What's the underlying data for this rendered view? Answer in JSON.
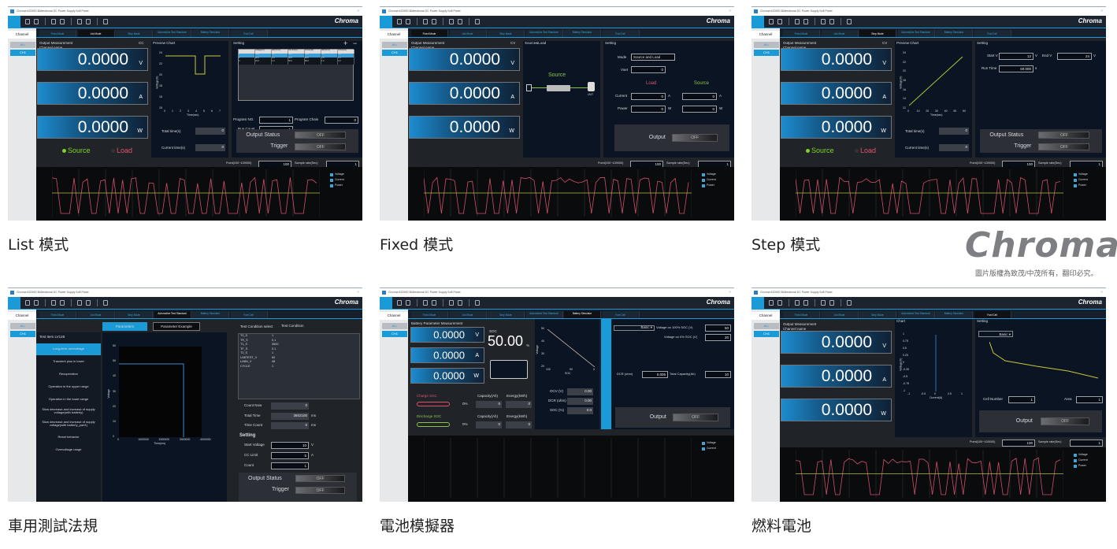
{
  "window": {
    "title": "Chroma 62000D Bidirectional DC Power Supply Soft Panel",
    "logo": "Chroma"
  },
  "mode_tabs": [
    "Fixed Mode",
    "List Mode",
    "Step Mode",
    "Automotive Test Standard",
    "Battery Simulator",
    "Fuel Cell"
  ],
  "channel": {
    "header": "Channel",
    "all": "ALL",
    "ch1": "CH1"
  },
  "colors": {
    "accent": "#1a9ad6",
    "source": "#7ed321",
    "load": "#e0506a",
    "voltage_line": "#a8c43c",
    "current_line": "#d0506a"
  },
  "common": {
    "output_measurement": "Output Measurement",
    "channel_name": "Channel name",
    "reading": "0.0000",
    "units": [
      "V",
      "A",
      "W"
    ],
    "source": "Source",
    "load": "Load",
    "off": "OFF",
    "output_status": "Output Status",
    "trigger": "Trigger",
    "output": "Output",
    "point_label": "Point(100~100000)",
    "point_value": "100",
    "sample_label": "Sample rate(Sec)",
    "sample_value": "1",
    "legend": [
      "Voltage",
      "Current",
      "Power"
    ],
    "setting": "Setting",
    "total_time": "Total time(s)",
    "current_time": "Current time(s)",
    "zero": "0"
  },
  "panels": [
    {
      "caption": "List 模式",
      "active_tab": 1,
      "mode": "CC",
      "chart_title": "Preview Chart",
      "yaxis": [
        "24",
        "22",
        "20",
        "18",
        "16",
        "15"
      ],
      "xaxis": [
        "0",
        "1",
        "2",
        "3",
        "4",
        "5",
        "6",
        "7"
      ],
      "xlabel": "Time(sec)",
      "ylabel": "Voltage(V)",
      "program_no_label": "Program NO.",
      "program_no": "1",
      "program_chain_label": "Program Chain",
      "program_chain": "0",
      "run_count_label": "Run Count",
      "run_count": "1",
      "plus": "+",
      "minus": "−",
      "table_headers": [
        "",
        "Voltage(V)",
        "SR(V/ms)",
        "Current(A)",
        "Power(W)",
        "SR(A/ms)",
        "Time(sec)"
      ],
      "table_rows": [
        [
          "1",
          "24.0",
          "1.0",
          "50.0",
          "80.0",
          "1.0",
          "3.0"
        ],
        [
          "2",
          "20.0",
          "1.0",
          "50.0",
          "80.0",
          "1.0",
          "1.0"
        ],
        [
          "3",
          "24.0",
          "1.0",
          "50.0",
          "80.0",
          "1.0",
          "3.0"
        ]
      ]
    },
    {
      "caption": "Fixed 模式",
      "active_tab": 0,
      "mode": "CV",
      "diagram_title": "Source&Load",
      "diagram_source": "Source",
      "uut": "UUT",
      "mode_label": "Mode",
      "mode_value": "Source and Load",
      "vset_label": "Vset",
      "vset": "0",
      "load_header": "Load",
      "source_header": "Source",
      "current_label": "Current",
      "power_label": "Power",
      "unit_a": "A",
      "unit_w": "W"
    },
    {
      "caption": "Step 模式",
      "active_tab": 2,
      "mode": "CV",
      "chart_title": "Preview Chart",
      "yaxis": [
        "24",
        "22",
        "20",
        "18",
        "16",
        "14",
        "12"
      ],
      "xaxis": [
        "0",
        "10",
        "20",
        "30",
        "40",
        "50",
        "60"
      ],
      "xlabel": "Time(sec)",
      "ylabel": "Voltage(V)",
      "start_v_label": "Start V",
      "start_v": "12",
      "end_v_label": "End V",
      "end_v": "24",
      "unit_v": "V",
      "run_time_label": "Run Time",
      "run_time": "60.000",
      "unit_s": "s"
    },
    {
      "caption": "車用測試法規",
      "active_tab": 3,
      "sub_tabs": [
        "Parameters",
        "Parameter Example"
      ],
      "test_item": "Test Item  LV148",
      "items": [
        "Long-term overvoltage",
        "Transient plus in lower",
        "Recuperation",
        "Operation in the upper range",
        "Operation in the lower range",
        "Slow decrease and increase of supply voltage(with batterly)",
        "Slow decrease and increase of supply voltage(with batterly_part1)",
        "Reset behavior",
        "Overvoltage range"
      ],
      "yaxis": [
        "60",
        "50",
        "40",
        "30",
        "20",
        "10",
        "0"
      ],
      "xaxis": [
        "0",
        "1000000",
        "2000000",
        "3000000",
        "4000000"
      ],
      "xlabel": "Time(ms)",
      "ylabel": "Voltage",
      "cond_label": "Test Condition select",
      "cond_value": "Test Condition",
      "params": [
        [
          "T0_S",
          "1"
        ],
        [
          "TR_S",
          "0.1"
        ],
        [
          "T1_S",
          "3600"
        ],
        [
          "TF_S",
          "0.1"
        ],
        [
          "T2_S",
          "1"
        ],
        [
          "U48TEST_V",
          "60"
        ],
        [
          "U48N_V",
          "48"
        ],
        [
          "CYCLE",
          "1"
        ]
      ],
      "count_now_label": "Count Now",
      "count_now": "0",
      "total_time_label": "Total Time",
      "total_time": "3602100",
      "time_count_label": "Time Count",
      "time_count": "0",
      "unit_ms": "ms",
      "start_voltage_label": "Start Voltage",
      "start_voltage": "10",
      "unit_v": "V",
      "cc_limit_label": "CC Limit",
      "cc_limit": "5",
      "unit_a": "A",
      "count_label": "Count",
      "count": "1"
    },
    {
      "caption": "電池模擬器",
      "active_tab": 4,
      "title": "Battery Parameter Measurement",
      "soc_label": "SOC",
      "soc": "50.00",
      "percent": "%",
      "yaxis": [
        "50",
        "40",
        "30",
        "20"
      ],
      "xaxis": [
        "100",
        "50",
        "0"
      ],
      "xlabel": "SOC",
      "ylabel": "Voltage",
      "charge_soc": "Charge SOC",
      "discharge_soc": "Discharge SOC",
      "soc_pct": "0%",
      "capacity_label": "Capacity(Ah)",
      "energy_label": "Energy(kWh)",
      "ocv_label": "OCV (V)",
      "ocv": "0.00",
      "dcr_label": "DCR (ohm)",
      "dcr": "0.00",
      "socp_label": "SOC (%)",
      "socp": "0.0",
      "basic": "Basic ▾",
      "v100_label": "Voltage on 100% SOC (V)",
      "v100": "50",
      "v0_label": "Voltage on 0% SOC (V)",
      "v0": "20",
      "dcr_set_label": "DCR (ohm)",
      "dcr_set": "0.005",
      "cap_label": "Total Capacity(Ah)",
      "cap": "10"
    },
    {
      "caption": "燃料電池",
      "active_tab": 5,
      "chart_title": "Chart",
      "yaxis": [
        "1",
        "0.75",
        "0.5",
        "0.25",
        "0",
        "-0.25",
        "-0.5",
        "-0.75",
        "-1"
      ],
      "xaxis": [
        "-1",
        "-0.5",
        "0",
        "0.5",
        "1"
      ],
      "xlabel": "Current(A)",
      "ylabel": "Voltage(V)",
      "basic": "Basic ▾",
      "cell_label": "Cell Number",
      "cell": "1",
      "area_label": "Area",
      "area": "1"
    }
  ],
  "brand": {
    "logo": "Chroma",
    "copyright": "圖片版權為致茂/中茂所有，翻印必究。"
  }
}
